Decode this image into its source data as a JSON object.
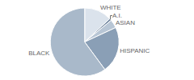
{
  "chart_data": {
    "type": "pie",
    "categories": [
      "WHITE",
      "A.I.",
      "ASIAN",
      "HISPANIC",
      "BLACK"
    ],
    "values": [
      13,
      1,
      4,
      22,
      60
    ],
    "colors": [
      "#dbe3ec",
      "#6e849d",
      "#b8c6d5",
      "#8a9fb6",
      "#a9b9ca"
    ]
  }
}
